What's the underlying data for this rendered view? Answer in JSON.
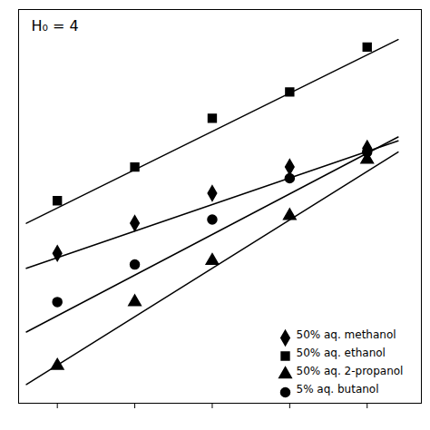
{
  "chart_data": {
    "type": "scatter",
    "title": "H₀ = 4",
    "color": "black",
    "xlim": [
      0.5,
      5.7
    ],
    "ylim": [
      -0.5,
      10.0
    ],
    "xticks": [
      1,
      2,
      3,
      4,
      5
    ],
    "yticks": [],
    "tick_labels": false,
    "grid": false,
    "legend": "lower right",
    "series": [
      {
        "name": "50% aq. methanol",
        "marker": "diamond",
        "x": [
          1.0,
          2.0,
          3.0,
          4.0,
          5.0
        ],
        "values": [
          3.5,
          4.3,
          5.1,
          5.8,
          6.3
        ],
        "fit_x": [
          0.6,
          5.4
        ],
        "fit_values": [
          3.1,
          6.5
        ]
      },
      {
        "name": "50% aq. ethanol",
        "marker": "square",
        "x": [
          1.0,
          2.0,
          3.0,
          4.0,
          5.0
        ],
        "values": [
          4.9,
          5.8,
          7.1,
          7.8,
          9.0
        ],
        "fit_x": [
          0.6,
          5.4
        ],
        "fit_values": [
          4.3,
          9.2
        ]
      },
      {
        "name": "50% aq. 2-propanol",
        "marker": "triangle",
        "x": [
          1.0,
          2.0,
          3.0,
          4.0,
          5.0
        ],
        "values": [
          0.5,
          2.2,
          3.3,
          4.5,
          6.0
        ],
        "fit_x": [
          0.6,
          5.4
        ],
        "fit_values": [
          0.0,
          6.2
        ]
      },
      {
        "name": "5% aq. butanol",
        "marker": "circle",
        "x": [
          1.0,
          2.0,
          3.0,
          4.0,
          5.0
        ],
        "values": [
          2.2,
          3.2,
          4.4,
          5.5,
          6.2
        ],
        "fit_x": [
          0.6,
          5.4
        ],
        "fit_values": [
          1.4,
          6.6
        ]
      }
    ]
  }
}
